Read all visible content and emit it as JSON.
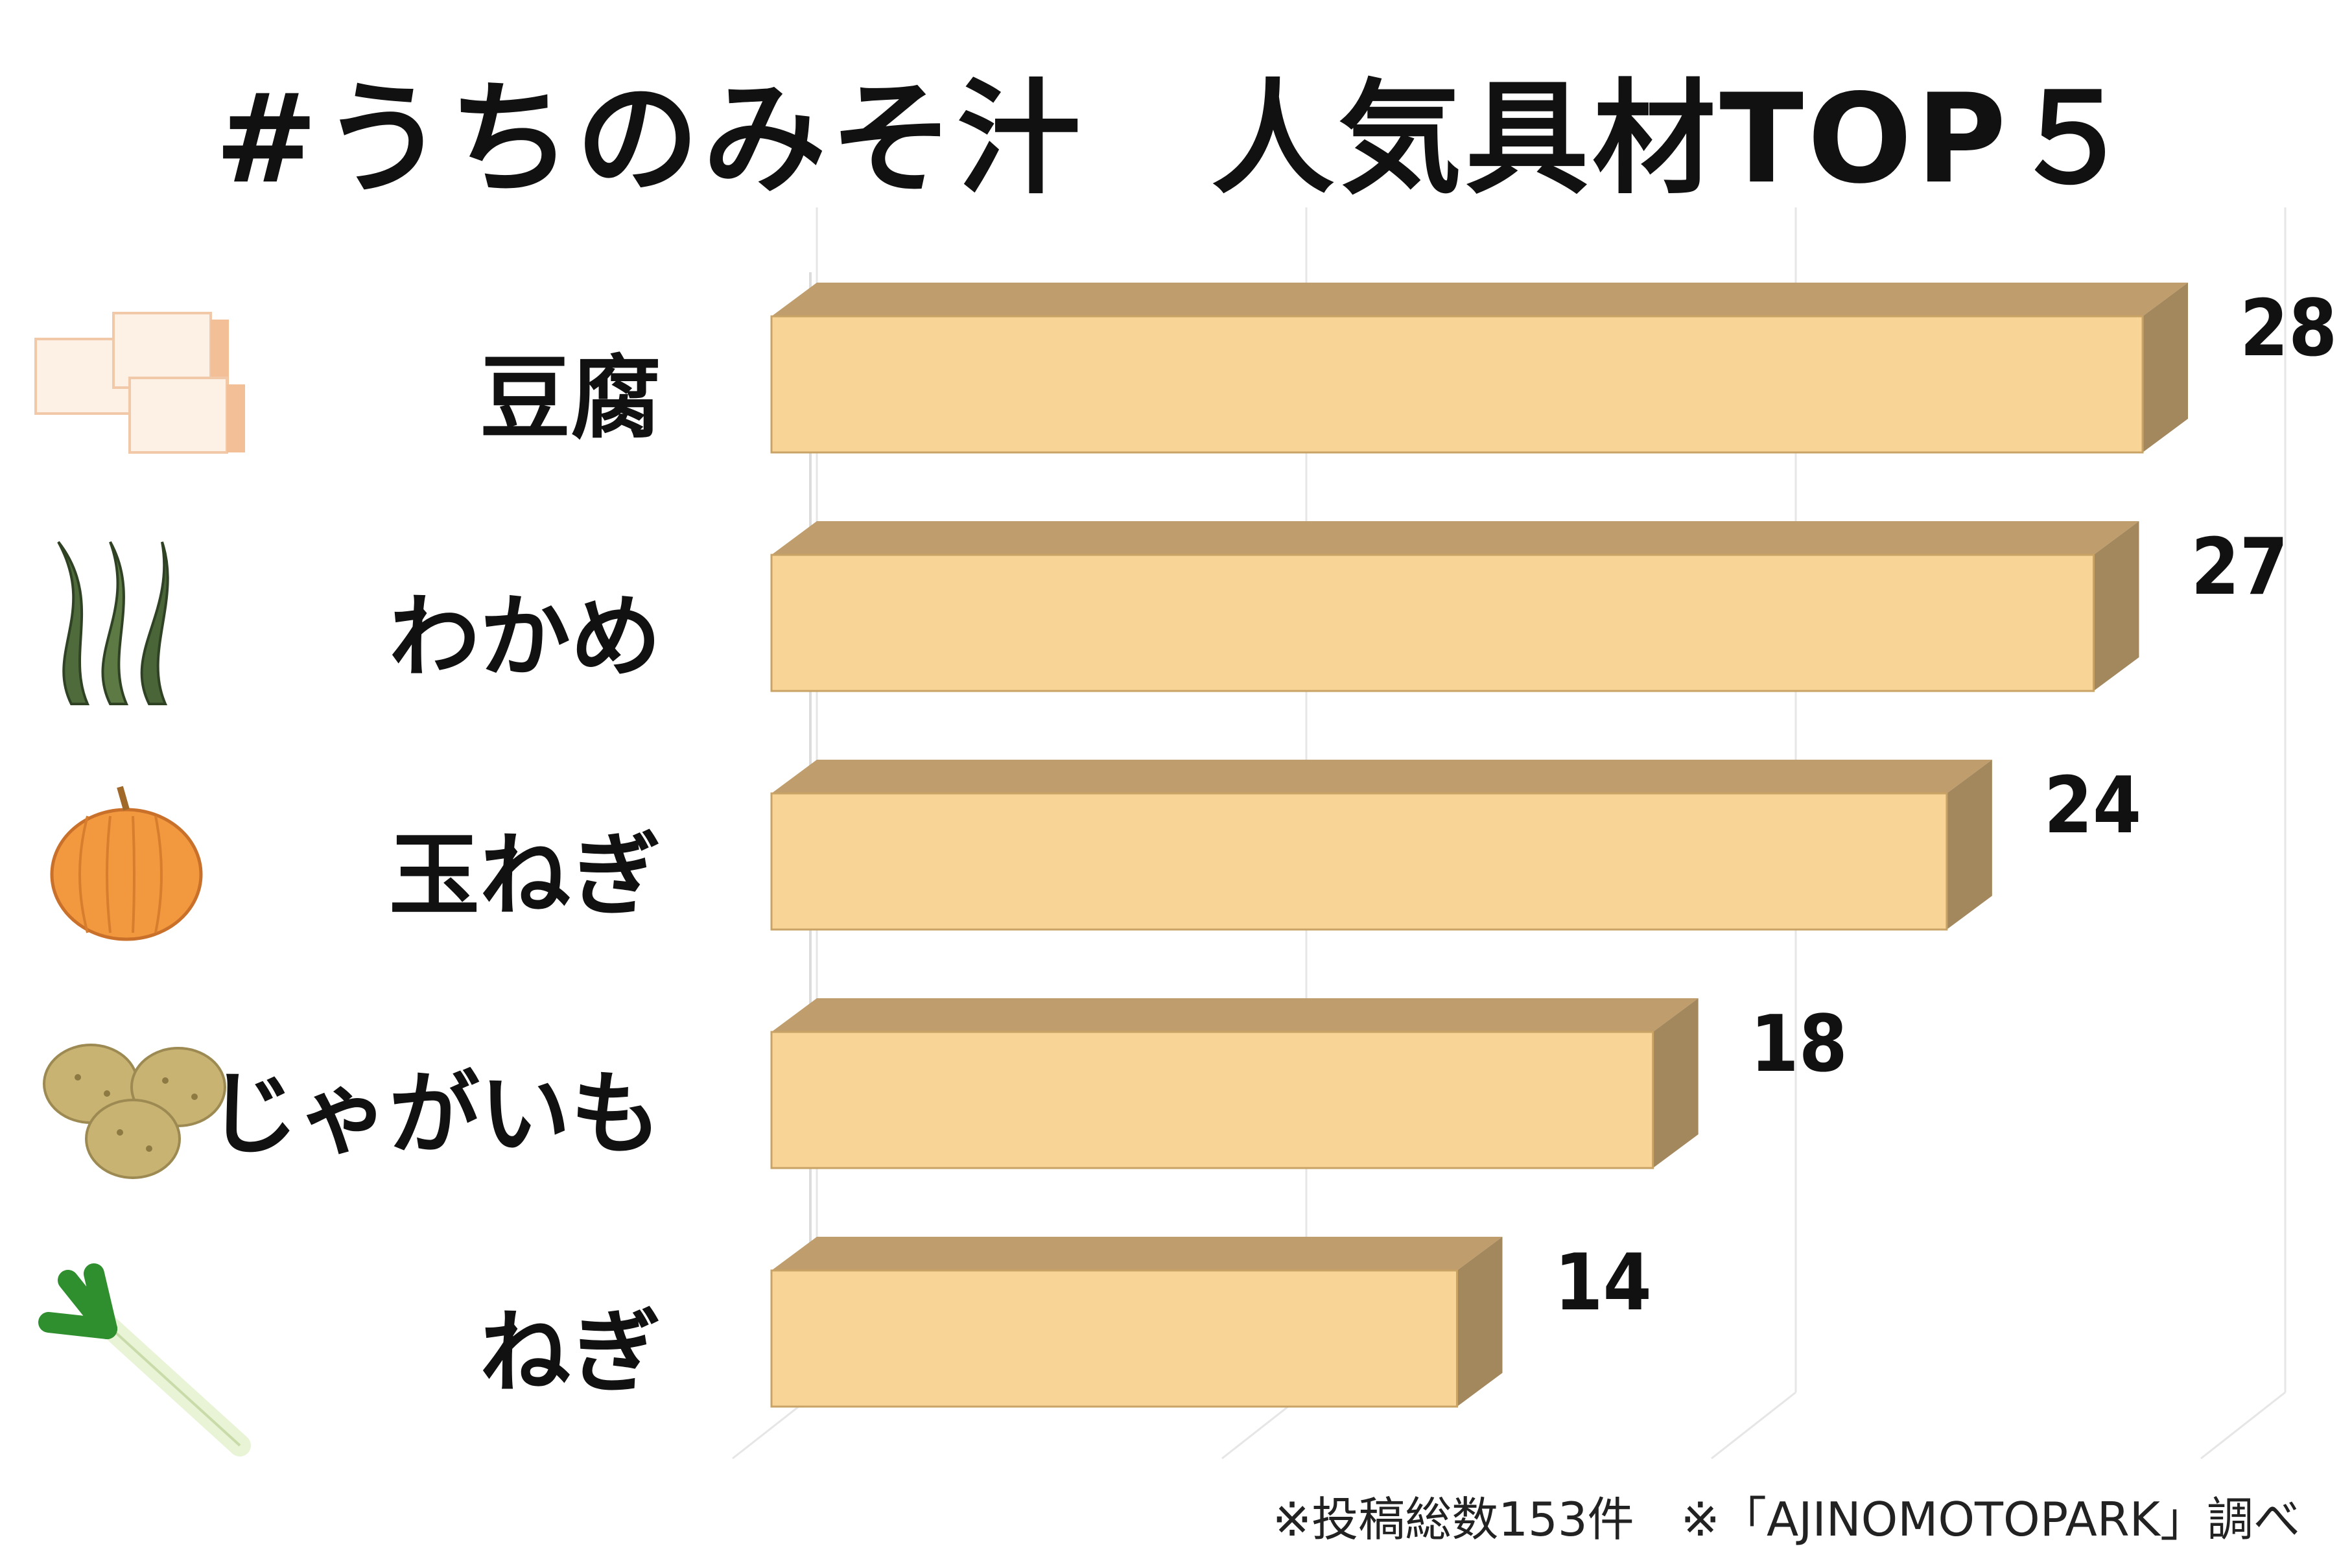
{
  "chart_data": {
    "type": "bar",
    "orientation": "horizontal",
    "style": "3d",
    "title": "#うちのみそ汁　人気具材TOP５",
    "categories": [
      "豆腐",
      "わかめ",
      "玉ねぎ",
      "じゃがいも",
      "ねぎ"
    ],
    "values": [
      28,
      27,
      24,
      18,
      14
    ],
    "icons": [
      "tofu-icon",
      "wakame-icon",
      "onion-icon",
      "potato-icon",
      "green-onion-icon"
    ],
    "xlim": [
      0,
      30
    ],
    "grid": true,
    "legend": "none",
    "colors": {
      "bar_front": "#f8d597",
      "bar_top": "#bf9d6c",
      "bar_side": "#a3885e",
      "bar_edge": "#c9a365"
    }
  },
  "footnote": "※投稿総数153件　※「AJINOMOTOPARK」調べ"
}
